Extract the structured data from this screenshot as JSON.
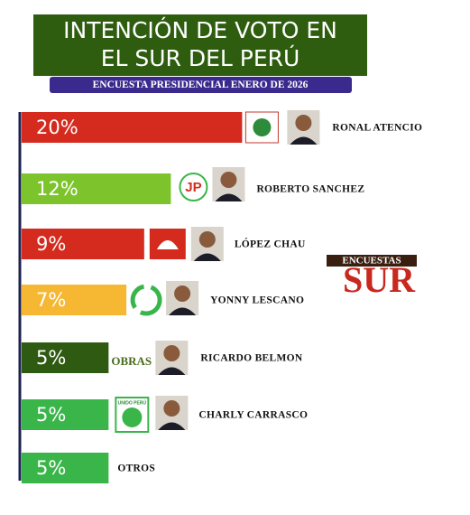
{
  "chart_data": {
    "type": "bar",
    "orientation": "horizontal",
    "title": [
      "INTENCIÓN DE VOTO EN",
      "EL SUR DEL PERÚ"
    ],
    "subtitle": "ENCUESTA PRESIDENCIAL ENERO DE 2026",
    "categories": [
      "RONAL ATENCIO",
      "ROBERTO SANCHEZ",
      "LÓPEZ CHAU",
      "YONNY LESCANO",
      "RICARDO BELMON",
      "CHARLY CARRASCO",
      "OTROS"
    ],
    "values": [
      20,
      12,
      9,
      7,
      5,
      5,
      5
    ],
    "value_labels": [
      "20%",
      "12%",
      "9%",
      "7%",
      "5%",
      "5%",
      "5%"
    ],
    "colors": [
      "#d52b1e",
      "#7dc42c",
      "#d52b1e",
      "#f6b833",
      "#2e5a12",
      "#3ab54a",
      "#3ab54a"
    ],
    "party_marks": [
      "JP",
      "OBRAS",
      "UNIDO PERÚ"
    ],
    "brand": [
      "ENCUESTAS",
      "SUR"
    ]
  }
}
